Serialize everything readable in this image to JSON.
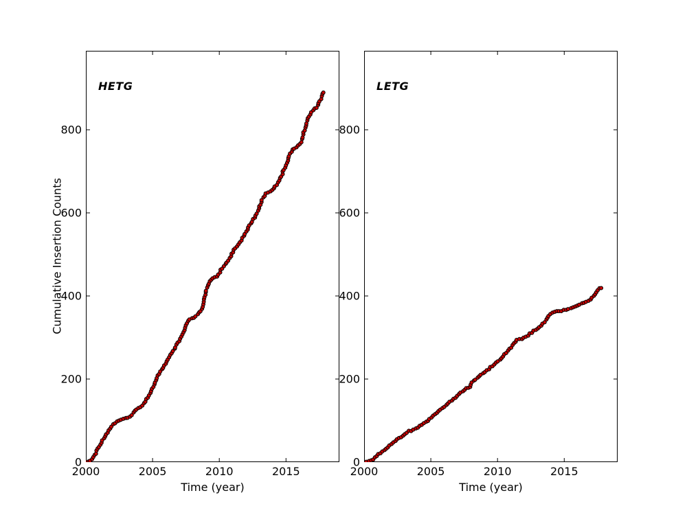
{
  "figure": {
    "background": "#ffffff",
    "text_color": "#000000",
    "axis_color": "#000000"
  },
  "chart_data": [
    {
      "type": "scatter",
      "title": "HETG",
      "xlabel": "Time (year)",
      "ylabel": "Cumulative Insertion Counts",
      "xlim": [
        2000,
        2019
      ],
      "ylim": [
        0,
        990
      ],
      "xticks": [
        2000,
        2005,
        2010,
        2015
      ],
      "yticks": [
        0,
        200,
        400,
        600,
        800
      ],
      "grid": false,
      "legend": "none",
      "tick_direction": "in",
      "marker": {
        "shape": "circle",
        "size": 5,
        "color": "#cc0000",
        "edge_color": "#000000"
      },
      "points": [
        [
          2000.0,
          0
        ],
        [
          2000.35,
          2
        ],
        [
          2000.5,
          8
        ],
        [
          2000.7,
          18
        ],
        [
          2001.0,
          40
        ],
        [
          2001.3,
          55
        ],
        [
          2001.6,
          72
        ],
        [
          2002.0,
          90
        ],
        [
          2002.4,
          99
        ],
        [
          2002.85,
          104
        ],
        [
          2003.35,
          110
        ],
        [
          2003.6,
          122
        ],
        [
          2003.9,
          130
        ],
        [
          2004.15,
          133
        ],
        [
          2004.5,
          150
        ],
        [
          2004.8,
          165
        ],
        [
          2005.0,
          178
        ],
        [
          2005.4,
          207
        ],
        [
          2005.7,
          223
        ],
        [
          2006.0,
          240
        ],
        [
          2006.5,
          264
        ],
        [
          2007.0,
          292
        ],
        [
          2007.3,
          310
        ],
        [
          2007.55,
          330
        ],
        [
          2007.7,
          342
        ],
        [
          2008.1,
          347
        ],
        [
          2008.4,
          356
        ],
        [
          2008.65,
          365
        ],
        [
          2008.78,
          371
        ],
        [
          2008.88,
          395
        ],
        [
          2008.98,
          410
        ],
        [
          2009.08,
          418
        ],
        [
          2009.2,
          431
        ],
        [
          2009.35,
          440
        ],
        [
          2009.8,
          446
        ],
        [
          2010.1,
          461
        ],
        [
          2010.4,
          474
        ],
        [
          2010.8,
          492
        ],
        [
          2011.1,
          510
        ],
        [
          2011.5,
          527
        ],
        [
          2011.9,
          548
        ],
        [
          2012.3,
          570
        ],
        [
          2012.7,
          592
        ],
        [
          2013.0,
          612
        ],
        [
          2013.2,
          632
        ],
        [
          2013.45,
          645
        ],
        [
          2013.9,
          652
        ],
        [
          2014.3,
          668
        ],
        [
          2014.7,
          692
        ],
        [
          2015.0,
          715
        ],
        [
          2015.25,
          738
        ],
        [
          2015.5,
          752
        ],
        [
          2015.95,
          762
        ],
        [
          2016.15,
          772
        ],
        [
          2016.35,
          795
        ],
        [
          2016.55,
          818
        ],
        [
          2016.8,
          838
        ],
        [
          2017.0,
          846
        ],
        [
          2017.25,
          853
        ],
        [
          2017.45,
          862
        ],
        [
          2017.6,
          874
        ],
        [
          2017.78,
          889
        ],
        [
          2017.88,
          891
        ]
      ]
    },
    {
      "type": "scatter",
      "title": "LETG",
      "xlabel": "Time (year)",
      "ylabel": "",
      "xlim": [
        2000,
        2019
      ],
      "ylim": [
        0,
        990
      ],
      "xticks": [
        2000,
        2005,
        2010,
        2015
      ],
      "yticks": [
        0,
        200,
        400,
        600,
        800
      ],
      "grid": false,
      "legend": "none",
      "tick_direction": "in",
      "marker": {
        "shape": "circle",
        "size": 5,
        "color": "#cc0000",
        "edge_color": "#000000"
      },
      "points": [
        [
          2000.0,
          0
        ],
        [
          2000.45,
          2
        ],
        [
          2000.7,
          8
        ],
        [
          2001.0,
          16
        ],
        [
          2001.5,
          29
        ],
        [
          2002.0,
          42
        ],
        [
          2002.5,
          55
        ],
        [
          2003.0,
          66
        ],
        [
          2003.35,
          74
        ],
        [
          2003.7,
          78
        ],
        [
          2004.1,
          85
        ],
        [
          2004.6,
          96
        ],
        [
          2005.0,
          107
        ],
        [
          2005.5,
          119
        ],
        [
          2006.0,
          134
        ],
        [
          2006.5,
          146
        ],
        [
          2007.0,
          161
        ],
        [
          2007.4,
          171
        ],
        [
          2007.65,
          177
        ],
        [
          2007.95,
          179
        ],
        [
          2008.05,
          193
        ],
        [
          2008.4,
          200
        ],
        [
          2008.8,
          212
        ],
        [
          2009.3,
          223
        ],
        [
          2009.8,
          236
        ],
        [
          2010.1,
          243
        ],
        [
          2010.35,
          251
        ],
        [
          2010.6,
          261
        ],
        [
          2010.9,
          272
        ],
        [
          2011.2,
          285
        ],
        [
          2011.45,
          295
        ],
        [
          2011.95,
          298
        ],
        [
          2012.3,
          306
        ],
        [
          2012.8,
          318
        ],
        [
          2013.3,
          330
        ],
        [
          2013.6,
          341
        ],
        [
          2013.95,
          356
        ],
        [
          2014.15,
          362
        ],
        [
          2014.85,
          365
        ],
        [
          2015.1,
          367
        ],
        [
          2015.5,
          370
        ],
        [
          2015.9,
          375
        ],
        [
          2016.3,
          382
        ],
        [
          2016.7,
          387
        ],
        [
          2017.0,
          392
        ],
        [
          2017.25,
          402
        ],
        [
          2017.5,
          412
        ],
        [
          2017.65,
          419
        ],
        [
          2017.95,
          421
        ]
      ]
    }
  ]
}
